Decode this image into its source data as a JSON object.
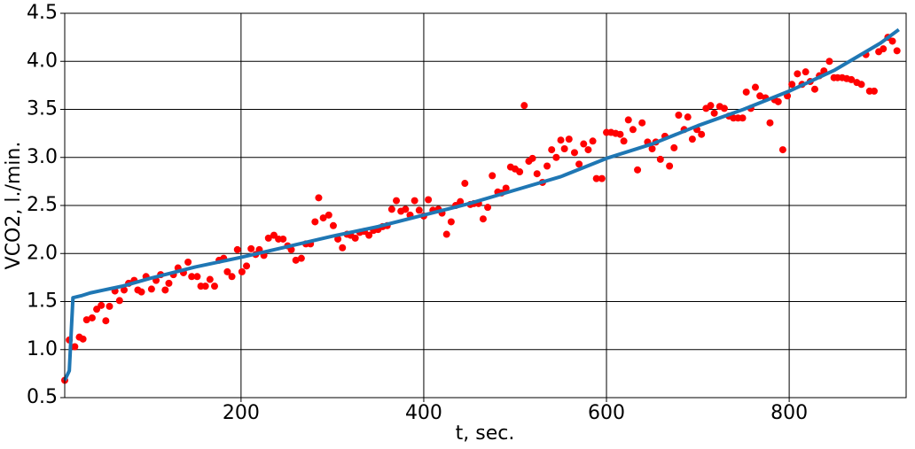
{
  "chart_data": {
    "type": "scatter",
    "xlabel": "t, sec.",
    "ylabel": "VCO2, l./min.",
    "xlim": [
      7,
      928
    ],
    "ylim": [
      0.5,
      4.5
    ],
    "xticks": [
      200,
      400,
      600,
      800
    ],
    "yticks": [
      0.5,
      {
        "value": 1,
        "label": "1.0"
      },
      1.5,
      {
        "value": 2,
        "label": "2.0"
      },
      2.5,
      {
        "value": 3,
        "label": "3.0"
      },
      3.5,
      {
        "value": 4,
        "label": "4.0"
      },
      4.5
    ],
    "grid": true,
    "series": [
      {
        "type": "scatter",
        "color": "#ff0000",
        "x": [
          7,
          12,
          18,
          23,
          27,
          31,
          37,
          42,
          47,
          52,
          56,
          62,
          67,
          72,
          77,
          83,
          87,
          91,
          96,
          102,
          107,
          112,
          117,
          121,
          126,
          131,
          137,
          142,
          146,
          152,
          156,
          161,
          166,
          171,
          176,
          181,
          185,
          190,
          196,
          201,
          206,
          211,
          216,
          220,
          225,
          230,
          236,
          241,
          246,
          251,
          255,
          260,
          266,
          271,
          276,
          281,
          285,
          290,
          296,
          301,
          306,
          311,
          316,
          320,
          325,
          330,
          335,
          340,
          345,
          350,
          355,
          360,
          365,
          370,
          375,
          380,
          385,
          390,
          395,
          400,
          405,
          410,
          416,
          420,
          425,
          430,
          435,
          440,
          445,
          451,
          455,
          460,
          465,
          470,
          475,
          481,
          485,
          490,
          495,
          500,
          505,
          510,
          515,
          519,
          524,
          530,
          535,
          540,
          545,
          550,
          554,
          559,
          565,
          570,
          575,
          580,
          585,
          589,
          595,
          600,
          605,
          610,
          615,
          619,
          624,
          629,
          634,
          639,
          645,
          650,
          654,
          659,
          664,
          669,
          674,
          679,
          685,
          689,
          694,
          699,
          704,
          709,
          714,
          718,
          724,
          729,
          734,
          739,
          744,
          749,
          753,
          758,
          763,
          768,
          774,
          779,
          784,
          788,
          793,
          798,
          803,
          809,
          814,
          818,
          823,
          828,
          833,
          838,
          844,
          849,
          853,
          858,
          863,
          868,
          874,
          879,
          884,
          888,
          893,
          898,
          903,
          908,
          913,
          918
        ],
        "values": [
          0.68,
          1.1,
          1.03,
          1.13,
          1.11,
          1.31,
          1.33,
          1.42,
          1.46,
          1.3,
          1.45,
          1.61,
          1.51,
          1.62,
          1.69,
          1.72,
          1.62,
          1.6,
          1.76,
          1.63,
          1.72,
          1.78,
          1.62,
          1.69,
          1.78,
          1.85,
          1.8,
          1.91,
          1.76,
          1.76,
          1.66,
          1.66,
          1.73,
          1.66,
          1.93,
          1.95,
          1.81,
          1.76,
          2.04,
          1.81,
          1.87,
          2.05,
          1.99,
          2.04,
          1.98,
          2.16,
          2.19,
          2.15,
          2.15,
          2.08,
          2.04,
          1.93,
          1.95,
          2.1,
          2.1,
          2.33,
          2.58,
          2.37,
          2.4,
          2.29,
          2.15,
          2.06,
          2.2,
          2.19,
          2.16,
          2.22,
          2.23,
          2.19,
          2.24,
          2.25,
          2.28,
          2.29,
          2.46,
          2.55,
          2.44,
          2.46,
          2.4,
          2.55,
          2.45,
          2.39,
          2.56,
          2.45,
          2.46,
          2.42,
          2.2,
          2.33,
          2.5,
          2.54,
          2.73,
          2.51,
          2.52,
          2.52,
          2.36,
          2.48,
          2.81,
          2.64,
          2.63,
          2.68,
          2.9,
          2.88,
          2.85,
          3.54,
          2.96,
          2.99,
          2.83,
          2.74,
          2.91,
          3.08,
          3.0,
          3.18,
          3.09,
          3.19,
          3.05,
          2.93,
          3.14,
          3.08,
          3.17,
          2.78,
          2.78,
          3.26,
          3.26,
          3.25,
          3.24,
          3.17,
          3.39,
          3.29,
          2.87,
          3.36,
          3.16,
          3.09,
          3.16,
          2.98,
          3.22,
          2.91,
          3.1,
          3.44,
          3.29,
          3.42,
          3.19,
          3.29,
          3.24,
          3.51,
          3.54,
          3.46,
          3.53,
          3.51,
          3.43,
          3.41,
          3.41,
          3.41,
          3.68,
          3.51,
          3.73,
          3.64,
          3.62,
          3.36,
          3.6,
          3.58,
          3.08,
          3.64,
          3.76,
          3.87,
          3.76,
          3.89,
          3.79,
          3.71,
          3.85,
          3.9,
          4.0,
          3.83,
          3.83,
          3.83,
          3.82,
          3.81,
          3.78,
          3.76,
          4.07,
          3.69,
          3.69,
          4.1,
          4.13,
          4.25,
          4.21,
          4.11
        ]
      },
      {
        "type": "line",
        "color": "#1f77b4",
        "x": [
          7,
          12,
          16,
          25,
          35,
          50,
          70,
          100,
          150,
          200,
          250,
          300,
          350,
          400,
          450,
          500,
          550,
          600,
          650,
          700,
          750,
          800,
          850,
          900,
          920
        ],
        "values": [
          0.68,
          0.78,
          1.54,
          1.56,
          1.59,
          1.62,
          1.66,
          1.74,
          1.86,
          1.96,
          2.07,
          2.18,
          2.28,
          2.4,
          2.52,
          2.66,
          2.8,
          2.99,
          3.14,
          3.33,
          3.5,
          3.69,
          3.91,
          4.19,
          4.33
        ]
      }
    ]
  }
}
